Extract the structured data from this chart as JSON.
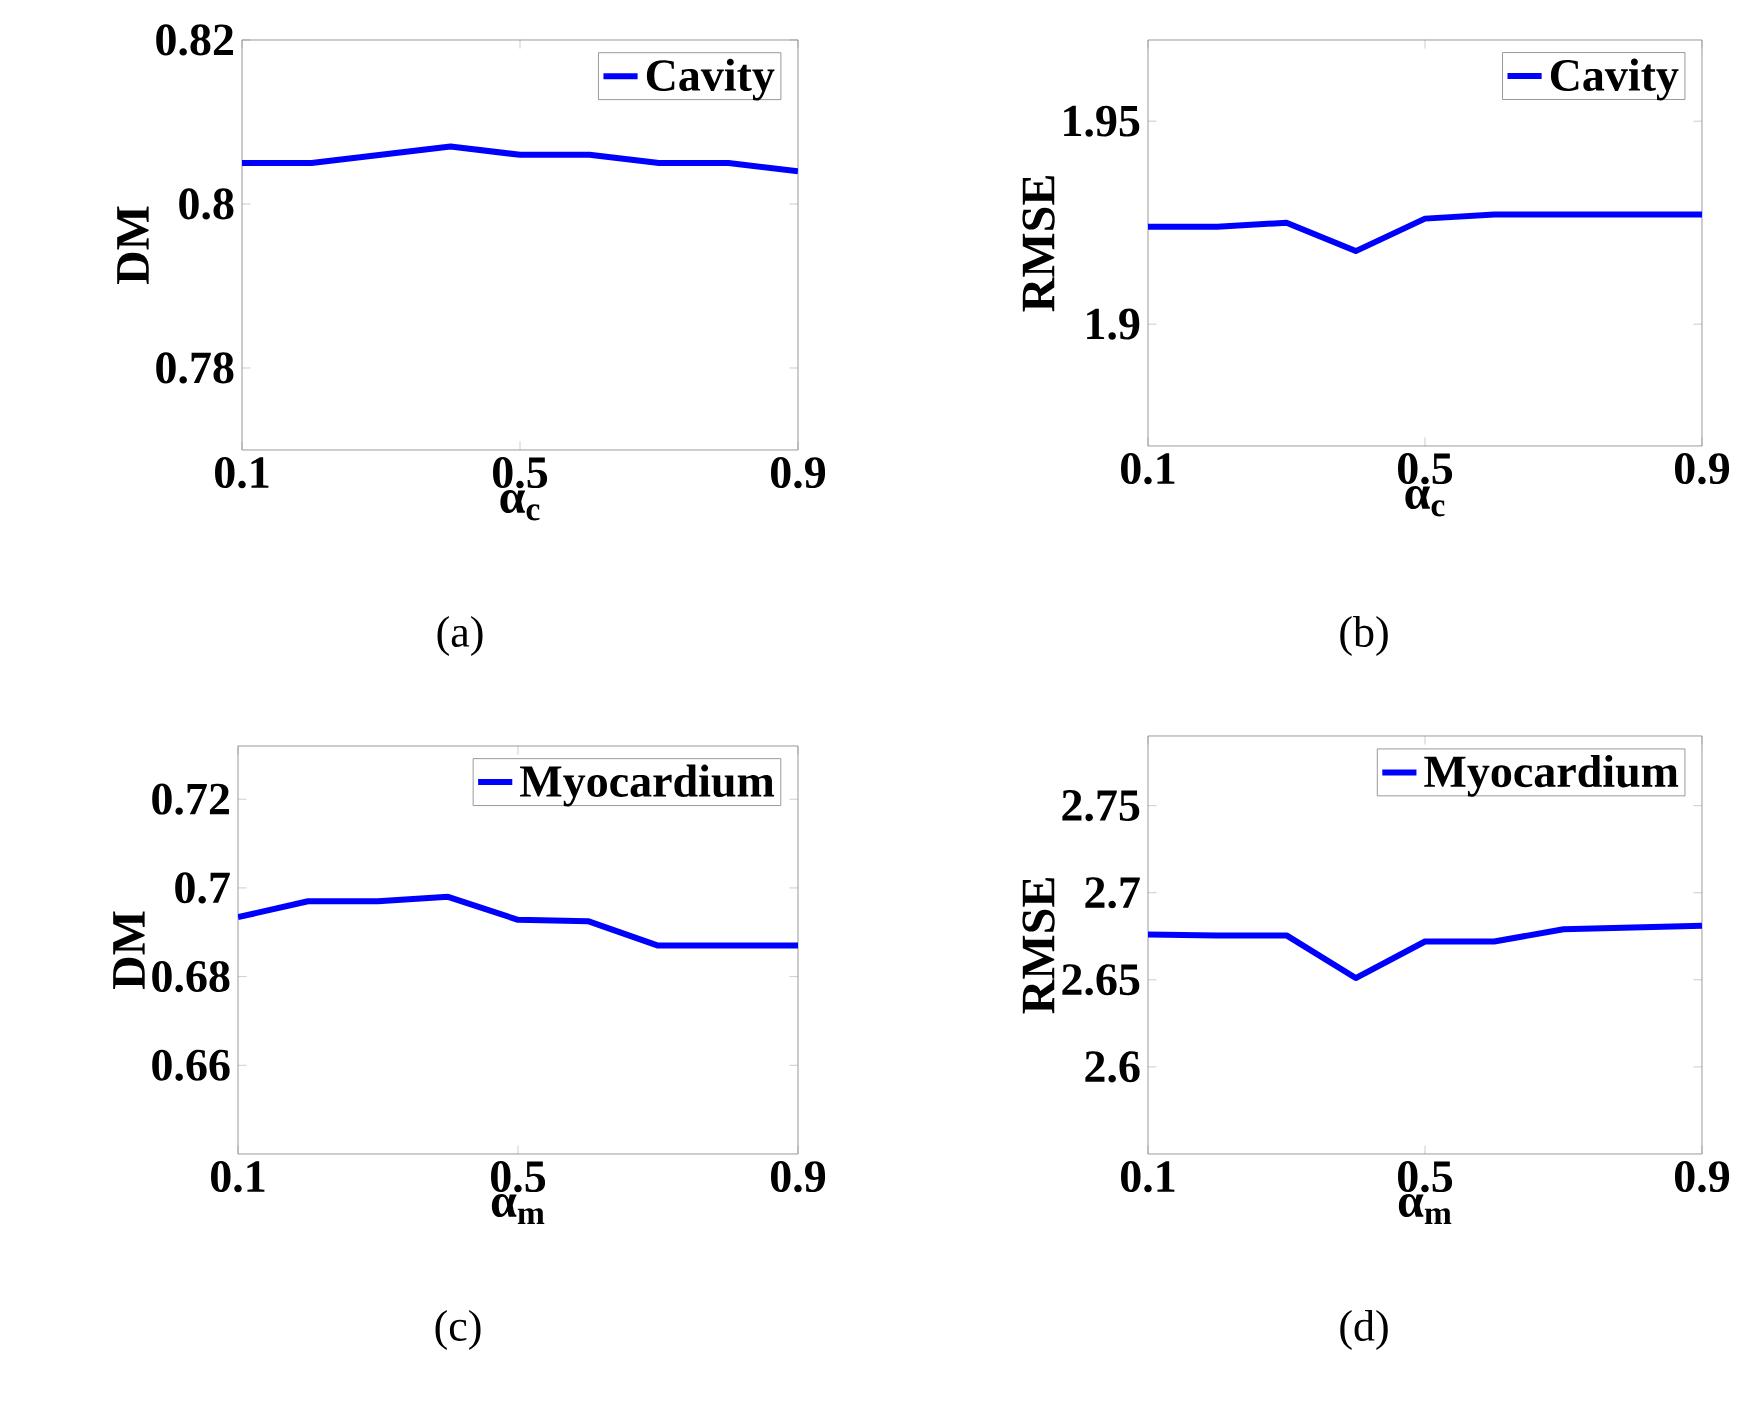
{
  "chart_data": [
    {
      "type": "line",
      "ylabel": "DM",
      "xlabel": "α$_{c}$",
      "annotations": [
        "(a)"
      ],
      "x": [
        0.1,
        0.2,
        0.3,
        0.4,
        0.5,
        0.6,
        0.7,
        0.8,
        0.9
      ],
      "xlim": [
        0.1,
        0.9
      ],
      "xticks": [
        0.1,
        0.5,
        0.9
      ],
      "ylim": [
        0.77,
        0.82
      ],
      "yticks": [
        0.78,
        0.8,
        0.82
      ],
      "legend": "top right",
      "grid": false,
      "series": [
        {
          "name": "Cavity",
          "color": "#0000ff",
          "values": [
            0.805,
            0.805,
            0.806,
            0.807,
            0.806,
            0.806,
            0.805,
            0.805,
            0.804
          ]
        }
      ]
    },
    {
      "type": "line",
      "ylabel": "RMSE",
      "xlabel": "α$_{c}$",
      "annotations": [
        "(b)"
      ],
      "x": [
        0.1,
        0.2,
        0.3,
        0.4,
        0.5,
        0.6,
        0.7,
        0.8,
        0.9
      ],
      "xlim": [
        0.1,
        0.9
      ],
      "xticks": [
        0.1,
        0.5,
        0.9
      ],
      "ylim": [
        1.87,
        1.97
      ],
      "yticks": [
        1.9,
        1.95
      ],
      "legend": "top right",
      "grid": false,
      "series": [
        {
          "name": "Cavity",
          "color": "#0000ff",
          "values": [
            1.924,
            1.924,
            1.925,
            1.918,
            1.926,
            1.927,
            1.927,
            1.927,
            1.927
          ]
        }
      ]
    },
    {
      "type": "line",
      "ylabel": "DM",
      "xlabel": "α$_{m}$",
      "annotations": [
        "(c)"
      ],
      "x": [
        0.1,
        0.2,
        0.3,
        0.4,
        0.5,
        0.6,
        0.7,
        0.8,
        0.9
      ],
      "xlim": [
        0.1,
        0.9
      ],
      "xticks": [
        0.1,
        0.5,
        0.9
      ],
      "ylim": [
        0.64,
        0.732
      ],
      "yticks": [
        0.66,
        0.68,
        0.7,
        0.72
      ],
      "legend": "top right",
      "grid": false,
      "series": [
        {
          "name": "Myocardium",
          "color": "#0000ff",
          "values": [
            0.6934,
            0.697,
            0.697,
            0.698,
            0.6928,
            0.6925,
            0.687,
            0.687,
            0.687
          ]
        }
      ]
    },
    {
      "type": "line",
      "ylabel": "RMSE",
      "xlabel": "α$_{m}$",
      "annotations": [
        "(d)"
      ],
      "x": [
        0.1,
        0.2,
        0.3,
        0.4,
        0.5,
        0.6,
        0.7,
        0.8,
        0.9
      ],
      "xlim": [
        0.1,
        0.9
      ],
      "xticks": [
        0.1,
        0.5,
        0.9
      ],
      "ylim": [
        2.55,
        2.79
      ],
      "yticks": [
        2.6,
        2.65,
        2.7,
        2.75
      ],
      "legend": "top right",
      "grid": false,
      "series": [
        {
          "name": "Myocardium",
          "color": "#0000ff",
          "values": [
            2.676,
            2.6755,
            2.6755,
            2.651,
            2.672,
            2.672,
            2.679,
            2.68,
            2.681
          ]
        }
      ]
    }
  ]
}
